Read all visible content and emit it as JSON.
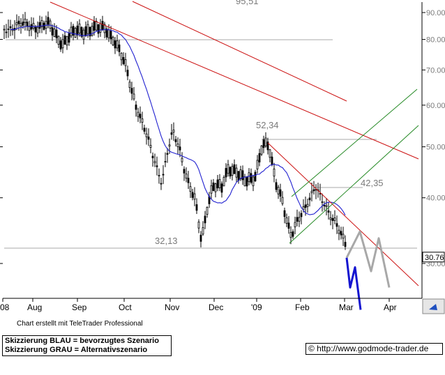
{
  "chart_data": {
    "type": "candlestick",
    "y_scale": "log",
    "ylim": [
      22.5,
      100
    ],
    "y_ticks": [
      30,
      40,
      50,
      60,
      70,
      80,
      90
    ],
    "x_tick_labels": [
      "08",
      "Aug",
      "Sep",
      "Oct",
      "Nov",
      "Dec",
      "'09",
      "Feb",
      "Mar",
      "Apr"
    ],
    "annotations": [
      {
        "text": "95,51",
        "value": 95.51
      },
      {
        "text": "52,34",
        "value": 52.34
      },
      {
        "text": "42,35",
        "value": 42.35
      },
      {
        "text": "32,13",
        "value": 32.13
      }
    ],
    "last_price_label": "30.76",
    "last_price": 30.76,
    "price_series": {
      "name": "",
      "approx_close": [
        86,
        87,
        84,
        88,
        81,
        84,
        85,
        83,
        81,
        86,
        79,
        66,
        57,
        52,
        42,
        53,
        52,
        46,
        33,
        47,
        45,
        47,
        44,
        51,
        47,
        44,
        48,
        40,
        38,
        36,
        34,
        33,
        32,
        30.76
      ]
    },
    "moving_average": {
      "name": "",
      "color": "#2020d0"
    },
    "trend_lines": [
      {
        "color": "#cc1111",
        "role": "upper long-term resistance"
      },
      {
        "color": "#cc1111",
        "role": "middle resistance"
      },
      {
        "color": "#cc1111",
        "role": "short-term resistance"
      },
      {
        "color": "#228822",
        "role": "upward channel upper"
      },
      {
        "color": "#228822",
        "role": "upward channel lower"
      }
    ],
    "scenarios": [
      {
        "name": "bevorzugtes Szenario",
        "color": "#1515d0",
        "values": [
          30.76,
          27.0,
          29.5,
          24.5
        ]
      },
      {
        "name": "Alternativszenario",
        "color": "#a8a8a8",
        "values": [
          30.76,
          34.5,
          29.0,
          33.5,
          27.0
        ]
      }
    ],
    "grid": false,
    "colors": {
      "price": "#000000",
      "axis": "#000000",
      "tick_text": "#7a7a7a",
      "annotation": "#7a7a7a",
      "scroll_button": "#2050c0"
    }
  },
  "footer": {
    "credit": "Chart erstellt mit TeleTrader Professional",
    "legend_line1": "Skizzierung BLAU = bevorzugtes Szenario",
    "legend_line2": "Skizzierung GRAU = Alternativszenario",
    "copyright": "© http://www.godmode-trader.de"
  }
}
